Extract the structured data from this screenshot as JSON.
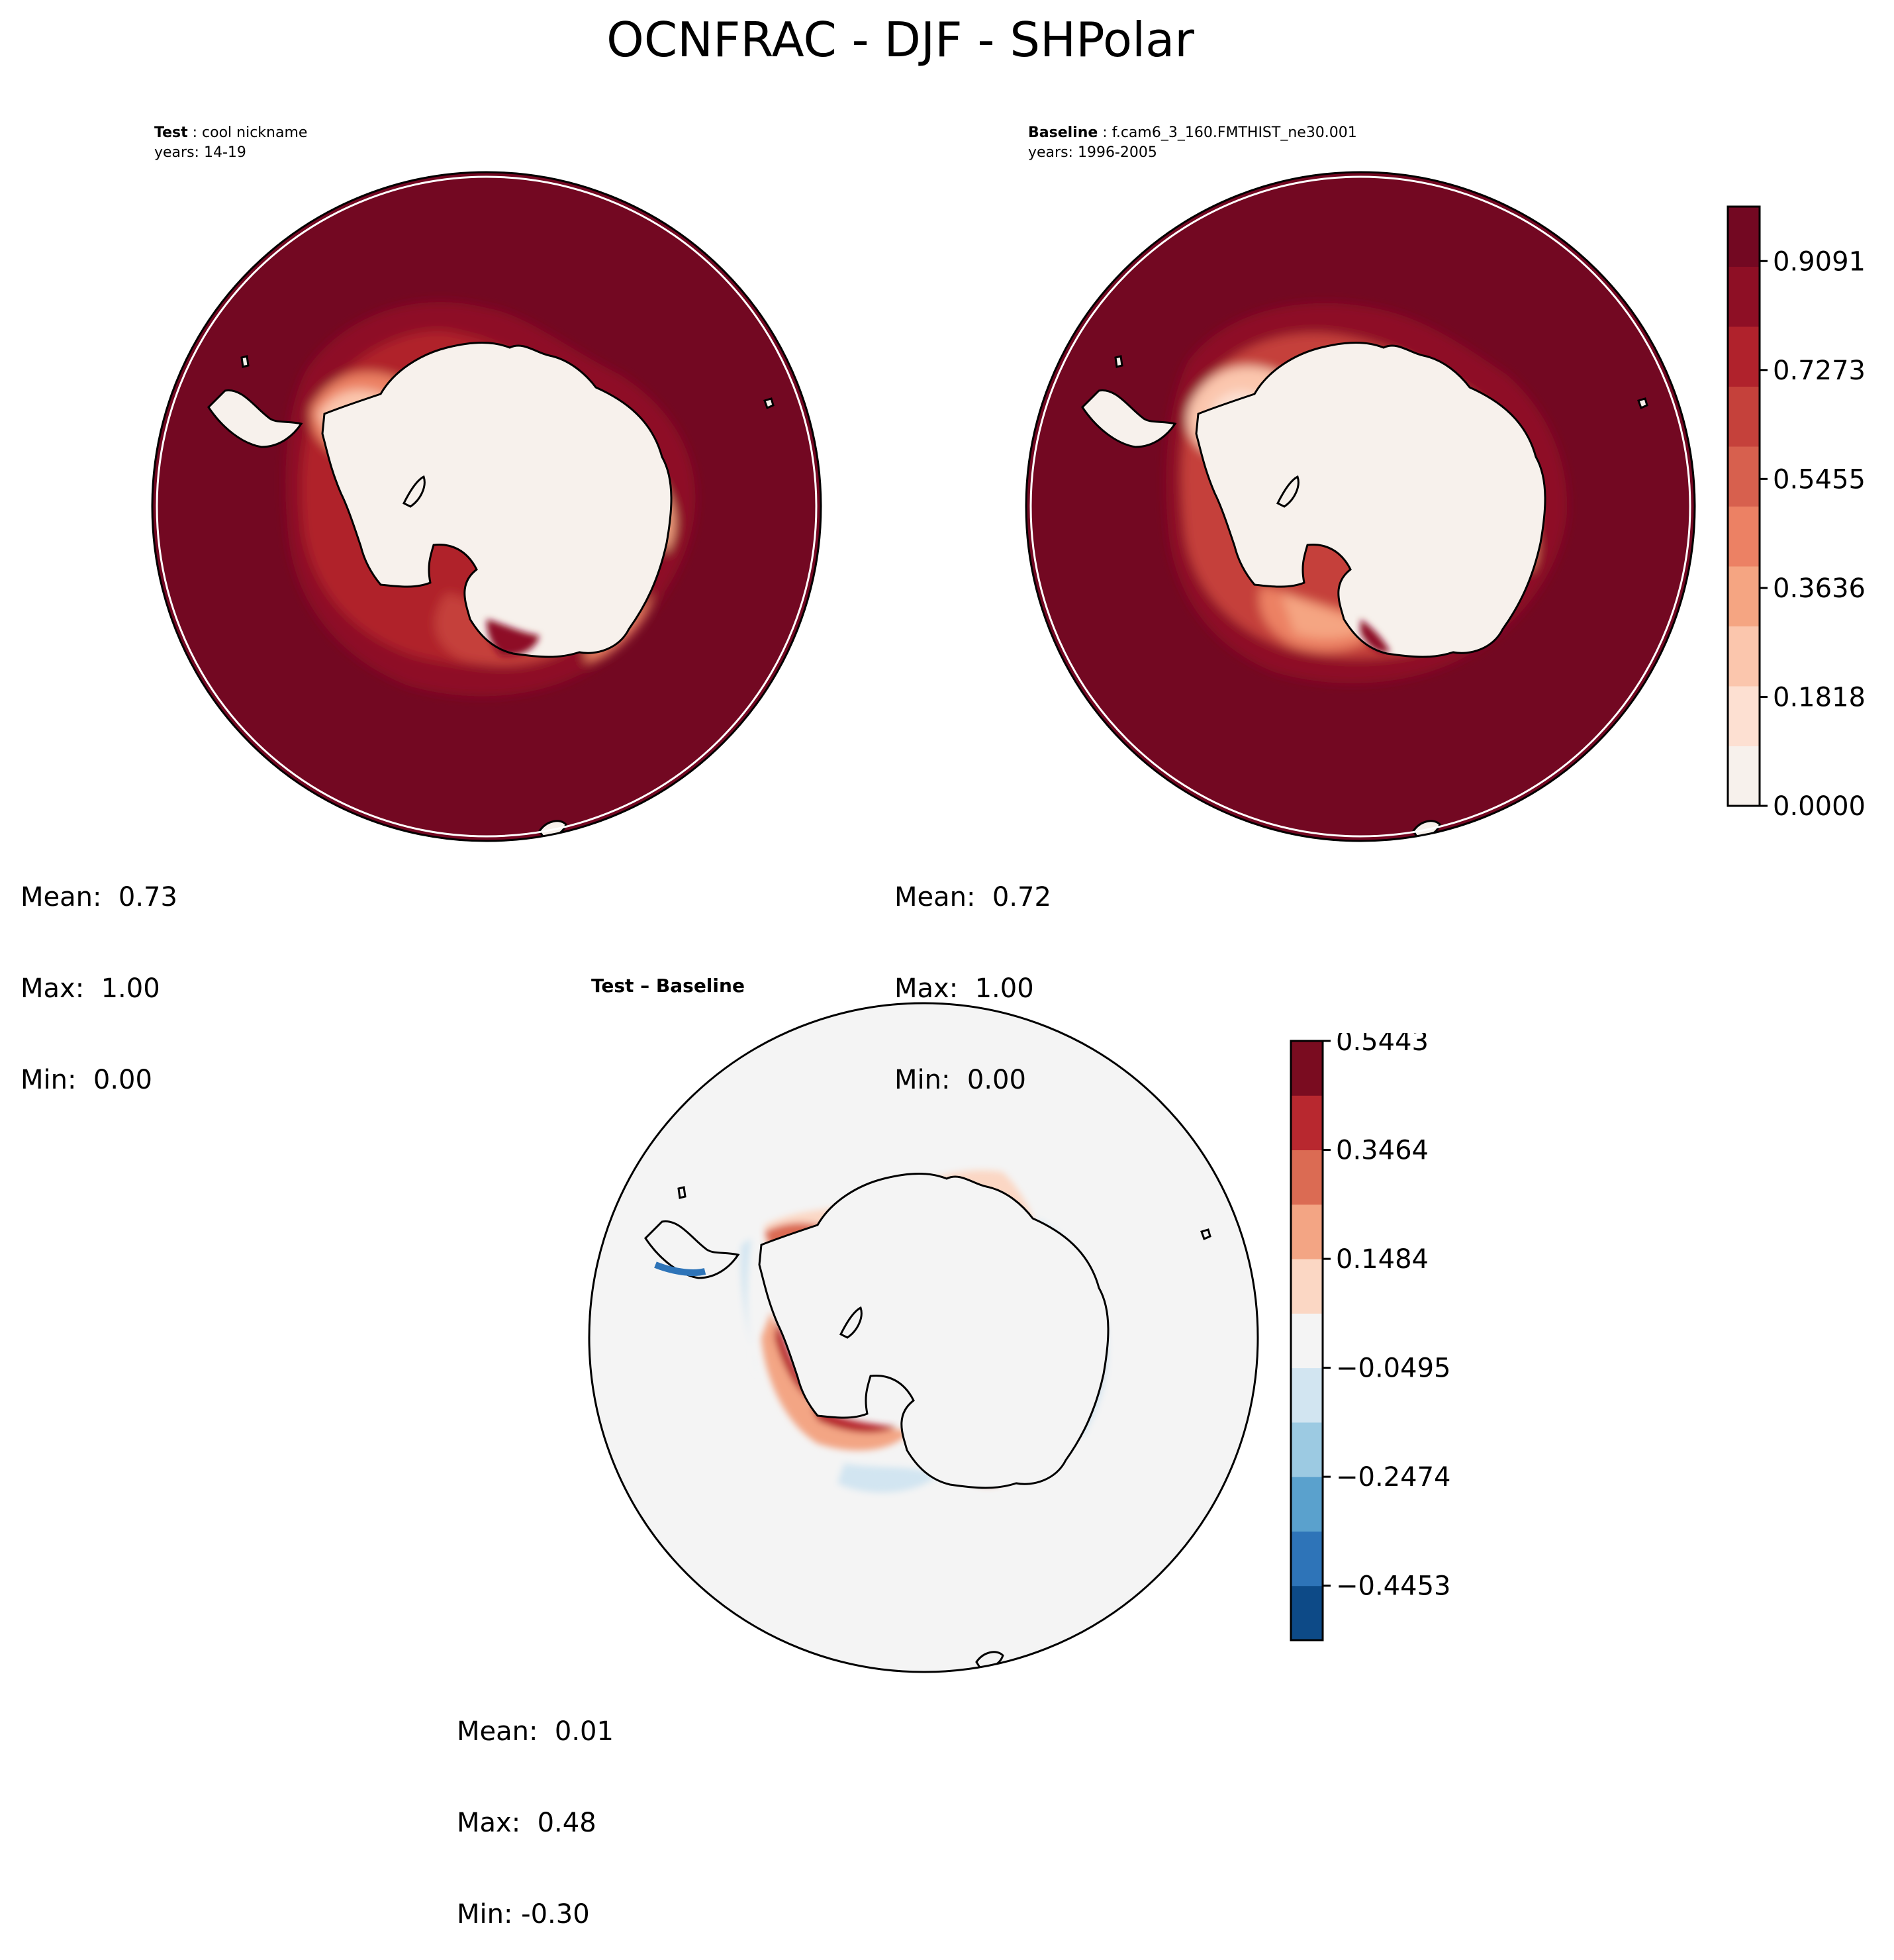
{
  "figure": {
    "title": "OCNFRAC - DJF - SHPolar"
  },
  "panels": {
    "test": {
      "label": "Test",
      "name": "cool nickname",
      "years": "years: 14-19",
      "stats": {
        "mean": "Mean:  0.73",
        "max": "Max:  1.00",
        "min": "Min:  0.00"
      }
    },
    "baseline": {
      "label": "Baseline",
      "name": "f.cam6_3_160.FMTHIST_ne30.001",
      "years": "years: 1996-2005",
      "stats": {
        "mean": "Mean:  0.72",
        "max": "Max:  1.00",
        "min": "Min:  0.00"
      }
    },
    "diff": {
      "title": "Test – Baseline",
      "stats": {
        "mean": "Mean:  0.01",
        "max": "Max:  0.48",
        "min": "Min: -0.30"
      }
    }
  },
  "colorbars": {
    "main": {
      "ticks": [
        "0.9091",
        "0.7273",
        "0.5455",
        "0.3636",
        "0.1818",
        "0.0000"
      ],
      "colors": [
        "#f7f1ec",
        "#fde0d2",
        "#fbc6ad",
        "#f5a582",
        "#ec8164",
        "#d7604e",
        "#c5413b",
        "#b0222c",
        "#8e0f25",
        "#730822"
      ]
    },
    "diff": {
      "ticks": [
        "0.5443",
        "0.3464",
        "0.1484",
        "−0.0495",
        "−0.2474",
        "−0.4453"
      ],
      "colors": [
        "#0d4a87",
        "#2e74b8",
        "#5aa1cd",
        "#9ccae2",
        "#d2e5f1",
        "#f4f4f4",
        "#fbd7c4",
        "#f3a584",
        "#db6b53",
        "#b8282f",
        "#7a0c20"
      ]
    }
  },
  "chart_data": [
    {
      "type": "heatmap",
      "title": "Test : cool nickname",
      "subtitle": "years: 14-19",
      "variable": "OCNFRAC",
      "season": "DJF",
      "region": "SHPolar",
      "projection": "south polar stereographic",
      "colorbar": {
        "min": 0.0,
        "max": 1.0,
        "ticks": [
          0.9091,
          0.7273,
          0.5455,
          0.3636,
          0.1818,
          0.0
        ],
        "colormap": "Reds"
      },
      "stats": {
        "mean": 0.73,
        "max": 1.0,
        "min": 0.0
      }
    },
    {
      "type": "heatmap",
      "title": "Baseline : f.cam6_3_160.FMTHIST_ne30.001",
      "subtitle": "years: 1996-2005",
      "variable": "OCNFRAC",
      "season": "DJF",
      "region": "SHPolar",
      "projection": "south polar stereographic",
      "colorbar": {
        "min": 0.0,
        "max": 1.0,
        "ticks": [
          0.9091,
          0.7273,
          0.5455,
          0.3636,
          0.1818,
          0.0
        ],
        "colormap": "Reds"
      },
      "stats": {
        "mean": 0.72,
        "max": 1.0,
        "min": 0.0
      }
    },
    {
      "type": "heatmap",
      "title": "Test – Baseline",
      "variable": "OCNFRAC",
      "season": "DJF",
      "region": "SHPolar",
      "projection": "south polar stereographic",
      "colorbar": {
        "min": -0.5443,
        "max": 0.5443,
        "ticks": [
          0.5443,
          0.3464,
          0.1484,
          -0.0495,
          -0.2474,
          -0.4453
        ],
        "colormap": "RdBu_r"
      },
      "stats": {
        "mean": 0.01,
        "max": 0.48,
        "min": -0.3
      }
    }
  ]
}
